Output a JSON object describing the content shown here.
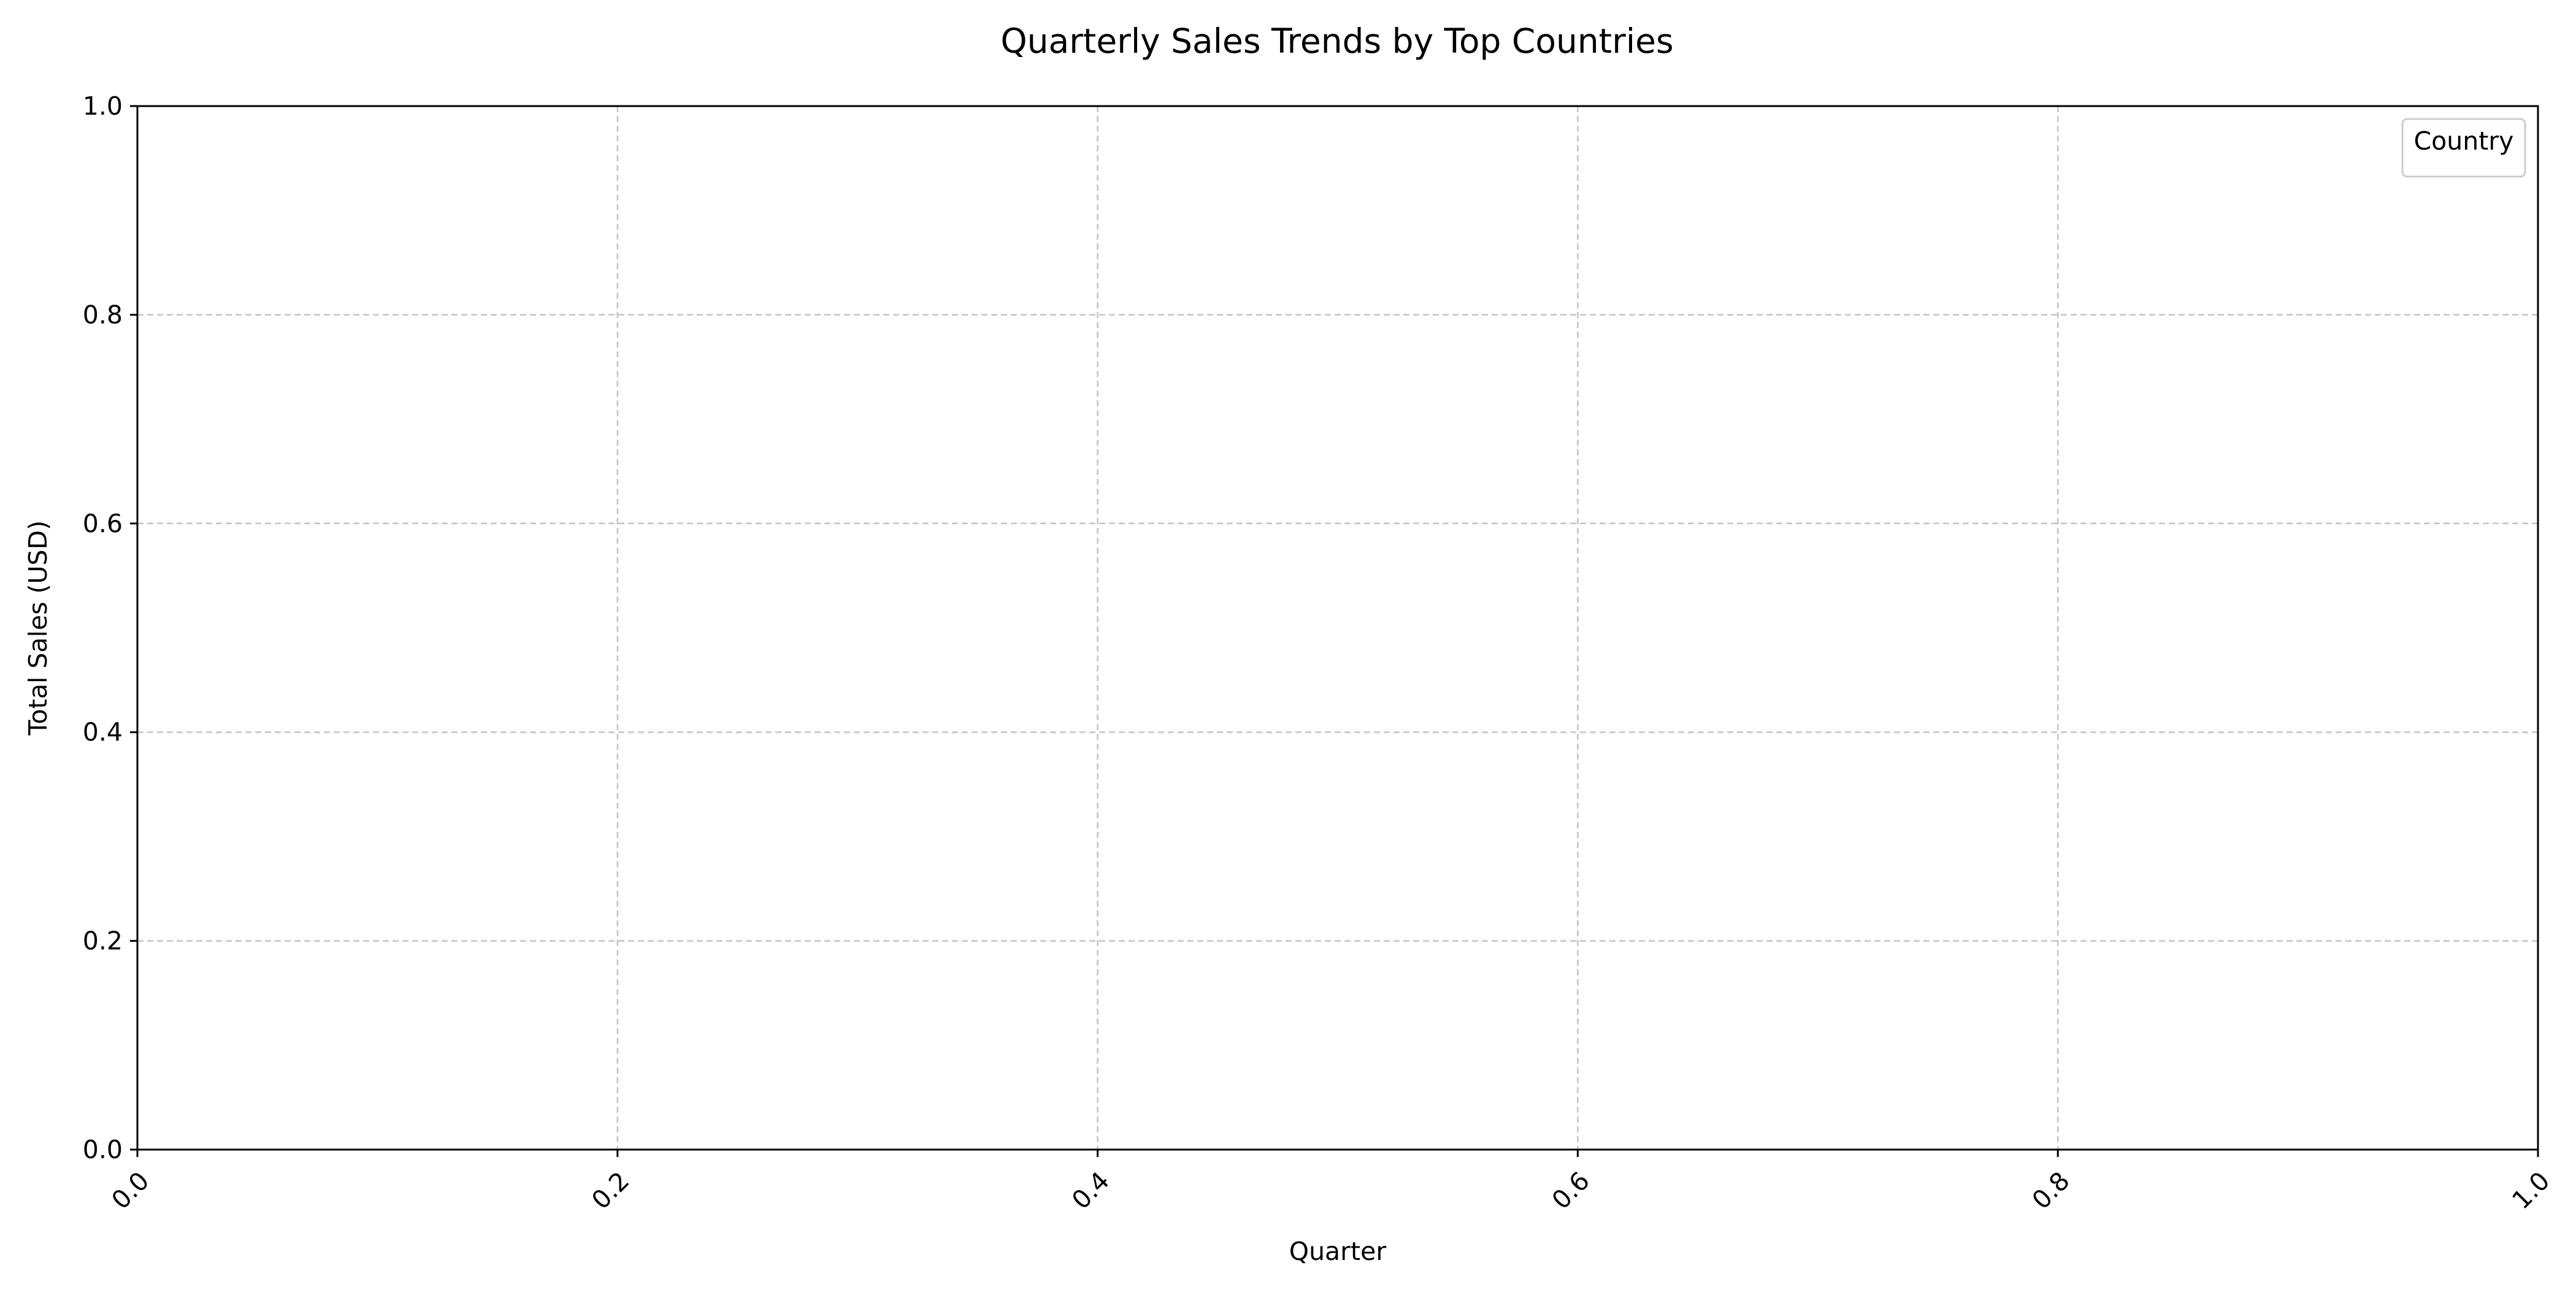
{
  "chart_data": {
    "type": "line",
    "title": "Quarterly Sales Trends by Top Countries",
    "xlabel": "Quarter",
    "ylabel": "Total Sales (USD)",
    "xlim": [
      0.0,
      1.0
    ],
    "ylim": [
      0.0,
      1.0
    ],
    "xticks": [
      "0.0",
      "0.2",
      "0.4",
      "0.6",
      "0.8",
      "1.0"
    ],
    "yticks": [
      "0.0",
      "0.2",
      "0.4",
      "0.6",
      "0.8",
      "1.0"
    ],
    "grid": true,
    "legend": {
      "title": "Country",
      "placement": "top-right",
      "entries": []
    },
    "series": []
  }
}
